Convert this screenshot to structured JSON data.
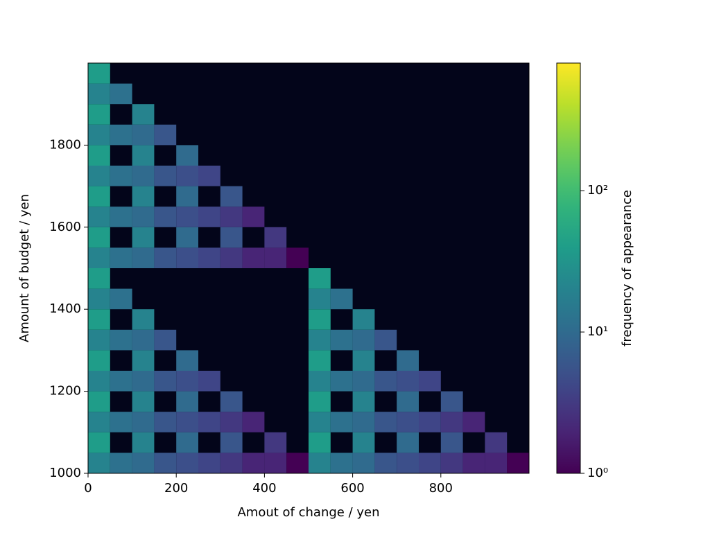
{
  "chart_data": {
    "type": "heatmap",
    "x_label": "Amout of change / yen",
    "y_label": "Amount of budget / yen",
    "colorbar_label": "frequency of appearance",
    "x_edges": [
      0,
      50,
      100,
      150,
      200,
      250,
      300,
      350,
      400,
      450,
      500,
      550,
      600,
      650,
      700,
      750,
      800,
      850,
      900,
      950,
      1000
    ],
    "y_edges": [
      1000,
      1050,
      1100,
      1150,
      1200,
      1250,
      1300,
      1350,
      1400,
      1450,
      1500,
      1550,
      1600,
      1650,
      1700,
      1750,
      1800,
      1850,
      1900,
      1950,
      2000
    ],
    "z": [
      [
        20,
        12,
        10,
        6,
        5,
        4,
        3,
        2,
        2,
        1,
        20,
        12,
        10,
        6,
        5,
        4,
        3,
        2,
        2,
        1
      ],
      [
        40,
        null,
        20,
        null,
        10,
        null,
        6,
        null,
        3,
        null,
        40,
        null,
        20,
        null,
        10,
        null,
        6,
        null,
        3,
        null
      ],
      [
        20,
        12,
        10,
        6,
        5,
        4,
        3,
        2,
        null,
        null,
        20,
        12,
        10,
        6,
        5,
        4,
        3,
        2,
        null,
        null
      ],
      [
        40,
        null,
        20,
        null,
        10,
        null,
        6,
        null,
        null,
        null,
        40,
        null,
        20,
        null,
        10,
        null,
        6,
        null,
        null,
        null
      ],
      [
        20,
        12,
        10,
        6,
        5,
        4,
        null,
        null,
        null,
        null,
        20,
        12,
        10,
        6,
        5,
        4,
        null,
        null,
        null,
        null
      ],
      [
        40,
        null,
        20,
        null,
        10,
        null,
        null,
        null,
        null,
        null,
        40,
        null,
        20,
        null,
        10,
        null,
        null,
        null,
        null,
        null
      ],
      [
        20,
        12,
        10,
        6,
        null,
        null,
        null,
        null,
        null,
        null,
        20,
        12,
        10,
        6,
        null,
        null,
        null,
        null,
        null,
        null
      ],
      [
        40,
        null,
        20,
        null,
        null,
        null,
        null,
        null,
        null,
        null,
        40,
        null,
        20,
        null,
        null,
        null,
        null,
        null,
        null,
        null
      ],
      [
        20,
        12,
        null,
        null,
        null,
        null,
        null,
        null,
        null,
        null,
        20,
        12,
        null,
        null,
        null,
        null,
        null,
        null,
        null,
        null
      ],
      [
        40,
        null,
        null,
        null,
        null,
        null,
        null,
        null,
        null,
        null,
        40,
        null,
        null,
        null,
        null,
        null,
        null,
        null,
        null,
        null
      ],
      [
        20,
        12,
        10,
        6,
        5,
        4,
        3,
        2,
        2,
        1,
        null,
        null,
        null,
        null,
        null,
        null,
        null,
        null,
        null,
        null
      ],
      [
        40,
        null,
        20,
        null,
        10,
        null,
        6,
        null,
        3,
        null,
        null,
        null,
        null,
        null,
        null,
        null,
        null,
        null,
        null,
        null
      ],
      [
        20,
        12,
        10,
        6,
        5,
        4,
        3,
        2,
        null,
        null,
        null,
        null,
        null,
        null,
        null,
        null,
        null,
        null,
        null,
        null
      ],
      [
        40,
        null,
        20,
        null,
        10,
        null,
        6,
        null,
        null,
        null,
        null,
        null,
        null,
        null,
        null,
        null,
        null,
        null,
        null,
        null
      ],
      [
        20,
        12,
        10,
        6,
        5,
        4,
        null,
        null,
        null,
        null,
        null,
        null,
        null,
        null,
        null,
        null,
        null,
        null,
        null,
        null
      ],
      [
        40,
        null,
        20,
        null,
        10,
        null,
        null,
        null,
        null,
        null,
        null,
        null,
        null,
        null,
        null,
        null,
        null,
        null,
        null,
        null
      ],
      [
        20,
        12,
        10,
        6,
        null,
        null,
        null,
        null,
        null,
        null,
        null,
        null,
        null,
        null,
        null,
        null,
        null,
        null,
        null,
        null
      ],
      [
        40,
        null,
        20,
        null,
        null,
        null,
        null,
        null,
        null,
        null,
        null,
        null,
        null,
        null,
        null,
        null,
        null,
        null,
        null,
        null
      ],
      [
        20,
        12,
        null,
        null,
        null,
        null,
        null,
        null,
        null,
        null,
        null,
        null,
        null,
        null,
        null,
        null,
        null,
        null,
        null,
        null
      ],
      [
        40,
        null,
        null,
        null,
        null,
        null,
        null,
        null,
        null,
        null,
        null,
        null,
        null,
        null,
        null,
        null,
        null,
        null,
        null,
        null
      ]
    ],
    "xlim": [
      0,
      1000
    ],
    "xticks": [
      0,
      200,
      400,
      600,
      800
    ],
    "ylim": [
      1000,
      2000
    ],
    "yticks": [
      1000,
      1200,
      1400,
      1600,
      1800
    ],
    "colormap": "viridis",
    "color_scale": "log",
    "background": "#03051a",
    "clim": [
      1,
      800
    ],
    "cticks": [
      {
        "value": 1,
        "label": "10⁰"
      },
      {
        "value": 10,
        "label": "10¹"
      },
      {
        "value": 100,
        "label": "10²"
      }
    ]
  }
}
